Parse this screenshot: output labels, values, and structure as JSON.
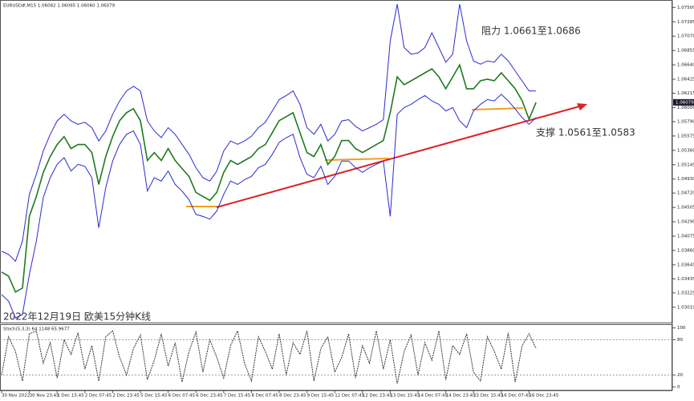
{
  "chart_data": [
    {
      "type": "line",
      "title": "EURUSD#,M15  1.06082 1.06095 1.06060 1.06079",
      "subtitle": "2022年12月19日 欧美15分钟K线",
      "annotations": [
        "阻力 1.0661至1.0686",
        "支撑 1.0561至1.0583"
      ],
      "price_label": {
        "value": 1.06079,
        "label": "1.06079"
      },
      "categories": [
        "30 Nov 2022",
        null,
        null,
        null,
        "30 Nov 23:45",
        null,
        null,
        null,
        "1 Dec 15:45",
        null,
        null,
        null,
        "2 Dec 07:45",
        null,
        null,
        null,
        "2 Dec 23:45",
        null,
        null,
        null,
        "5 Dec 15:45",
        null,
        null,
        null,
        "6 Dec 07:45",
        null,
        null,
        null,
        "6 Dec 23:45",
        null,
        null,
        null,
        "7 Dec 15:45",
        null,
        null,
        null,
        "8 Dec 07:45",
        null,
        null,
        null,
        "8 Dec 23:45",
        null,
        null,
        null,
        "9 Dec 15:45",
        null,
        null,
        null,
        "12 Dec 07:45",
        null,
        null,
        null,
        "12 Dec 23:45",
        null,
        null,
        null,
        "13 Dec 15:45",
        null,
        null,
        null,
        "14 Dec 07:45",
        null,
        null,
        null,
        "14 Dec 23:45",
        null,
        null,
        null,
        "15 Dec 15:45",
        null,
        null,
        null,
        "16 Dec 07:45",
        null,
        null,
        null,
        "16 Dec 23:45",
        null
      ],
      "series": [
        {
          "color": "#1f7a1f",
          "values": [
            1.03536,
            1.03476,
            1.03237,
            1.03297,
            1.04372,
            1.0467,
            1.05028,
            1.05267,
            1.05446,
            1.05566,
            1.05387,
            1.05446,
            1.05446,
            1.05327,
            1.04849,
            1.05267,
            1.05566,
            1.05805,
            1.05924,
            1.05984,
            1.05805,
            1.05208,
            1.05327,
            1.05208,
            1.05387,
            1.05208,
            1.05088,
            1.04969,
            1.0473,
            1.0467,
            1.04611,
            1.0473,
            1.05028,
            1.05208,
            1.05148,
            1.05208,
            1.05267,
            1.05387,
            1.05446,
            1.05625,
            1.05805,
            1.05864,
            1.05924,
            1.05625,
            1.05327,
            1.05267,
            1.05446,
            1.05148,
            1.05267,
            1.05506,
            1.05506,
            1.05387,
            1.05327,
            1.05387,
            1.05446,
            1.05506,
            1.05924,
            1.06461,
            1.06342,
            1.06402,
            1.06461,
            1.06521,
            1.06581,
            1.06461,
            1.06282,
            1.06461,
            1.0664,
            1.06282,
            1.06282,
            1.06402,
            1.06425,
            1.06402,
            1.06521,
            1.06402,
            1.06282,
            1.06103,
            1.05828,
            1.06079
          ]
        },
        {
          "color": "#2a2ad4",
          "values": [
            1.0385,
            1.038,
            1.037,
            1.04,
            1.047,
            1.05,
            1.0535,
            1.056,
            1.058,
            1.059,
            1.058,
            1.0575,
            1.0578,
            1.057,
            1.055,
            1.0565,
            1.059,
            1.061,
            1.0625,
            1.0632,
            1.0625,
            1.058,
            1.0565,
            1.0555,
            1.057,
            1.056,
            1.0545,
            1.053,
            1.051,
            1.0495,
            1.049,
            1.0505,
            1.0535,
            1.055,
            1.0545,
            1.055,
            1.0557,
            1.057,
            1.0578,
            1.0595,
            1.0612,
            1.0618,
            1.0625,
            1.0605,
            1.057,
            1.056,
            1.0575,
            1.055,
            1.056,
            1.058,
            1.0582,
            1.0572,
            1.0565,
            1.057,
            1.0575,
            1.0582,
            1.07,
            1.0755,
            1.069,
            1.068,
            1.0682,
            1.069,
            1.0712,
            1.069,
            1.0668,
            1.068,
            1.0755,
            1.07,
            1.067,
            1.0665,
            1.067,
            1.0668,
            1.068,
            1.067,
            1.0655,
            1.064,
            1.0625,
            1.0625
          ]
        },
        {
          "color": "#2a2ad4",
          "values": [
            1.032,
            1.031,
            1.0285,
            1.029,
            1.035,
            1.04,
            1.0465,
            1.0495,
            1.0515,
            1.0525,
            1.0505,
            1.0515,
            1.0512,
            1.0495,
            1.042,
            1.048,
            1.052,
            1.0545,
            1.056,
            1.0565,
            1.0545,
            1.0475,
            1.0495,
            1.049,
            1.0505,
            1.0485,
            1.0475,
            1.0462,
            1.044,
            1.0437,
            1.0433,
            1.0445,
            1.047,
            1.049,
            1.0485,
            1.0492,
            1.0497,
            1.051,
            1.0515,
            1.053,
            1.0548,
            1.0555,
            1.056,
            1.0525,
            1.05,
            1.0495,
            1.0512,
            1.0485,
            1.0497,
            1.052,
            1.052,
            1.051,
            1.0503,
            1.051,
            1.0515,
            1.052,
            1.0437,
            1.059,
            1.06,
            1.0605,
            1.0612,
            1.0618,
            1.061,
            1.0605,
            1.0595,
            1.06,
            1.058,
            1.057,
            1.0595,
            1.0605,
            1.0612,
            1.061,
            1.062,
            1.061,
            1.0598,
            1.0585,
            1.0575,
            1.0585
          ]
        }
      ],
      "ylim": [
        1.0278,
        1.076
      ],
      "yticks": [
        {
          "value": 1.075,
          "label": "1.07500"
        },
        {
          "value": 1.07285,
          "label": "1.07285"
        },
        {
          "value": 1.0707,
          "label": "1.07070"
        },
        {
          "value": 1.06855,
          "label": "1.06855"
        },
        {
          "value": 1.0664,
          "label": "1.06640"
        },
        {
          "value": 1.06425,
          "label": "1.06425"
        },
        {
          "value": 1.06215,
          "label": "1.06215"
        },
        {
          "value": 1.06,
          "label": "1.06000"
        },
        {
          "value": 1.0579,
          "label": "1.05790"
        },
        {
          "value": 1.05575,
          "label": "1.05575"
        },
        {
          "value": 1.0536,
          "label": "1.05360"
        },
        {
          "value": 1.05145,
          "label": "1.05145"
        },
        {
          "value": 1.0493,
          "label": "1.04930"
        },
        {
          "value": 1.0472,
          "label": "1.04720"
        },
        {
          "value": 1.04505,
          "label": "1.04505"
        },
        {
          "value": 1.0429,
          "label": "1.04290"
        },
        {
          "value": 1.04075,
          "label": "1.04075"
        },
        {
          "value": 1.0386,
          "label": "1.03860"
        },
        {
          "value": 1.03645,
          "label": "1.03645"
        },
        {
          "value": 1.03435,
          "label": "1.03435"
        },
        {
          "value": 1.03225,
          "label": "1.03225"
        },
        {
          "value": 1.0301,
          "label": "1.03010"
        }
      ]
    },
    {
      "type": "line",
      "title": "Stoch(5,3,3) 64.1148 65.9677",
      "series": [
        {
          "color": "#333333",
          "values": [
            20,
            85,
            60,
            10,
            90,
            95,
            40,
            75,
            15,
            80,
            55,
            92,
            30,
            70,
            10,
            85,
            95,
            50,
            20,
            65,
            88,
            12,
            45,
            90,
            35,
            75,
            8,
            60,
            93,
            25,
            80,
            50,
            15,
            70,
            95,
            40,
            10,
            85,
            60,
            30,
            90,
            20,
            75,
            55,
            95,
            10,
            65,
            85,
            25,
            50,
            90,
            15,
            70,
            40,
            95,
            30,
            80,
            5,
            60,
            88,
            20,
            75,
            45,
            95,
            12,
            70,
            55,
            90,
            25,
            10,
            85,
            60,
            30,
            92,
            8,
            70,
            90,
            65
          ]
        }
      ],
      "ylim": [
        -5,
        105
      ],
      "yticks": [
        100,
        80,
        20,
        0
      ]
    }
  ]
}
